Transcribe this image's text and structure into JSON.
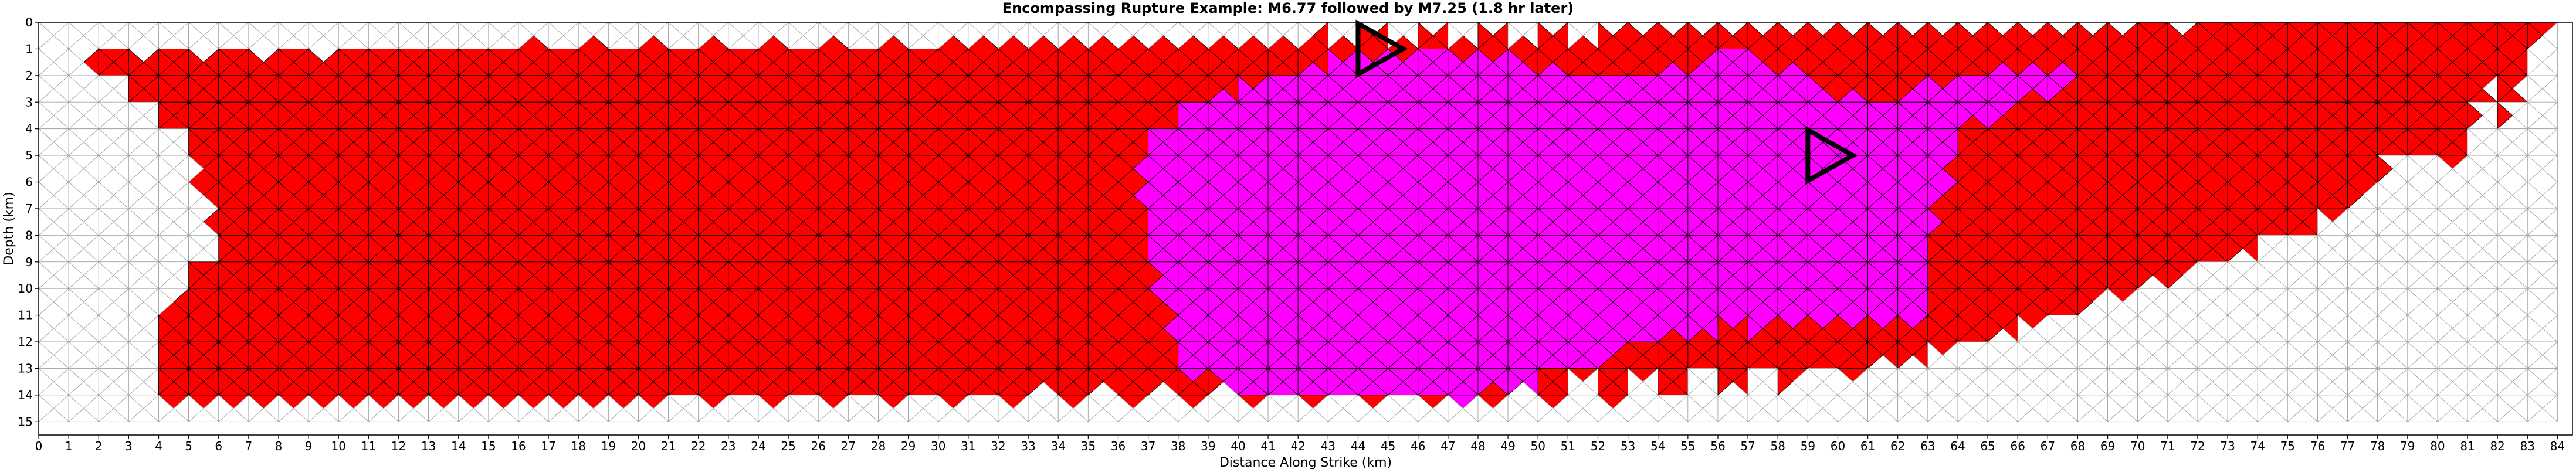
{
  "chart_data": {
    "type": "heatmap",
    "title": "Encompassing Rupture Example: M6.77 followed by M7.25 (1.8 hr later)",
    "xlabel": "Distance Along Strike (km)",
    "ylabel": "Depth (km)",
    "xlim": [
      0,
      84.5
    ],
    "ylim": [
      15.5,
      0
    ],
    "x_ticks": [
      0,
      1,
      2,
      3,
      4,
      5,
      6,
      7,
      8,
      9,
      10,
      11,
      12,
      13,
      14,
      15,
      16,
      17,
      18,
      19,
      20,
      21,
      22,
      23,
      24,
      25,
      26,
      27,
      28,
      29,
      30,
      31,
      32,
      33,
      34,
      35,
      36,
      37,
      38,
      39,
      40,
      41,
      42,
      43,
      44,
      45,
      46,
      47,
      48,
      49,
      50,
      51,
      52,
      53,
      54,
      55,
      56,
      57,
      58,
      59,
      60,
      61,
      62,
      63,
      64,
      65,
      66,
      67,
      68,
      69,
      70,
      71,
      72,
      73,
      74,
      75,
      76,
      77,
      78,
      79,
      80,
      81,
      82,
      83,
      84
    ],
    "y_ticks": [
      0,
      1,
      2,
      3,
      4,
      5,
      6,
      7,
      8,
      9,
      10,
      11,
      12,
      13,
      14,
      15
    ],
    "fault_bottom_depth": 15,
    "colors": {
      "first_rupture": "#ff0000",
      "second_rupture_only": "#ff00ff",
      "unruptured": "#ffffff",
      "mesh_edge_ruptured": "#000000",
      "mesh_edge_unruptured": "#a0a0a0",
      "hypocenter_marker": "#000000"
    },
    "series": [
      {
        "values": [
          [
            84,
            0,
            0
          ],
          [
            83.5,
            1,
            0.5
          ],
          [
            83,
            2,
            1
          ],
          [
            82,
            4,
            2.2
          ],
          [
            81,
            5.5,
            3.8
          ],
          [
            79,
            4.5,
            5.3
          ],
          [
            77,
            7,
            7.2
          ],
          [
            70,
            10,
            10.2
          ],
          [
            62,
            13,
            12.8
          ],
          [
            52,
            14.5,
            13.3
          ],
          [
            8,
            14.5,
            14.5
          ],
          [
            4,
            14.5,
            14.5
          ],
          [
            4,
            11,
            10.5
          ],
          [
            6,
            9.5,
            8.6
          ],
          [
            5,
            4.5,
            4.2
          ],
          [
            3,
            2.5,
            2.7
          ],
          [
            1.5,
            1,
            1.3
          ]
        ]
      },
      {
        "values": [
          [
            38.5,
            3,
            3
          ],
          [
            43,
            1.5,
            1.5
          ],
          [
            47,
            1,
            1.1
          ],
          [
            53,
            2,
            2.2
          ],
          [
            57,
            1,
            1.2
          ],
          [
            61,
            3,
            3.1
          ],
          [
            65,
            1.8,
            1.8
          ],
          [
            69,
            1.5,
            1.6
          ],
          [
            64,
            4,
            4.1
          ],
          [
            63,
            9,
            8.8
          ],
          [
            63,
            11.5,
            11.3
          ],
          [
            55,
            11.5,
            11.6
          ],
          [
            48,
            14,
            14.2
          ],
          [
            40,
            14,
            14
          ],
          [
            38,
            13,
            12.7
          ],
          [
            36.5,
            5.5,
            5.2
          ]
        ]
      }
    ],
    "hypocenters": [
      {
        "label": "M6.77",
        "x": 45.5,
        "depth": 1
      },
      {
        "label": "M7.25",
        "x": 60.5,
        "depth": 5
      }
    ]
  }
}
